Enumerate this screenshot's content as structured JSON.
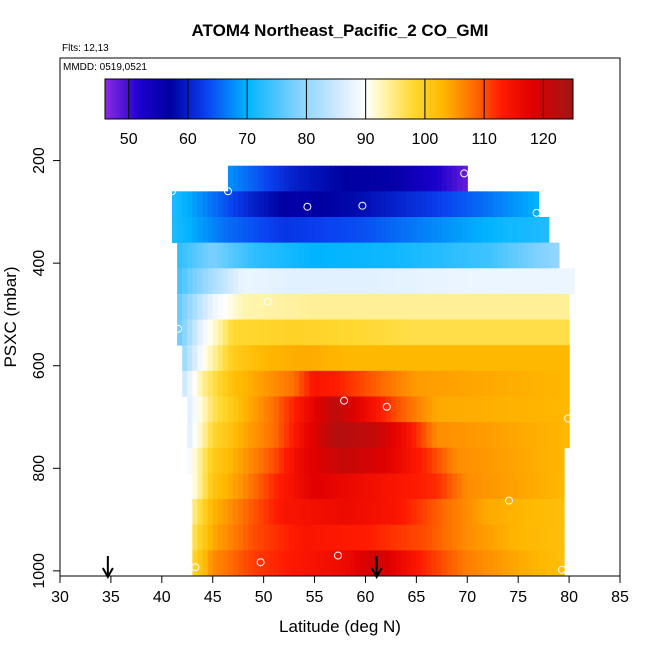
{
  "chart_data": {
    "type": "heatmap",
    "title": "ATOM4 Northeast_Pacific_2 CO_GMI",
    "annotations": [
      "Flts: 12,13",
      "MMDD: 0519,0521"
    ],
    "xlabel": "Latitude (deg N)",
    "ylabel": "PSXC (mbar)",
    "xlim": [
      30,
      85
    ],
    "ylim": [
      1000,
      0
    ],
    "x_ticks": [
      "30",
      "35",
      "40",
      "45",
      "50",
      "55",
      "60",
      "65",
      "70",
      "75",
      "80",
      "85"
    ],
    "y_ticks": [
      "200",
      "400",
      "600",
      "800",
      "1000"
    ],
    "colorbar": {
      "min": 46,
      "max": 125,
      "ticks": [
        "50",
        "60",
        "70",
        "80",
        "90",
        "100",
        "110",
        "120"
      ],
      "colors": [
        {
          "v": 46,
          "c": "#8a2be2"
        },
        {
          "v": 52,
          "c": "#1a00cc"
        },
        {
          "v": 57,
          "c": "#0000a0"
        },
        {
          "v": 63,
          "c": "#0a40f0"
        },
        {
          "v": 70,
          "c": "#00b4ff"
        },
        {
          "v": 78,
          "c": "#7cd0ff"
        },
        {
          "v": 86,
          "c": "#d8ecff"
        },
        {
          "v": 90,
          "c": "#ffffff"
        },
        {
          "v": 93,
          "c": "#fff5b0"
        },
        {
          "v": 98,
          "c": "#ffd830"
        },
        {
          "v": 103,
          "c": "#ffb800"
        },
        {
          "v": 108,
          "c": "#ff7000"
        },
        {
          "v": 113,
          "c": "#ff1a00"
        },
        {
          "v": 118,
          "c": "#e00000"
        },
        {
          "v": 125,
          "c": "#a01515"
        }
      ]
    },
    "rows": [
      {
        "p_top": 210,
        "p_bot": 260,
        "lat0": 46.5,
        "lat1": 70.0,
        "stops": [
          [
            46.5,
            68
          ],
          [
            53,
            60
          ],
          [
            58,
            57
          ],
          [
            63,
            56
          ],
          [
            67,
            52
          ],
          [
            70,
            48
          ]
        ]
      },
      {
        "p_top": 260,
        "p_bot": 310,
        "lat0": 41.0,
        "lat1": 77.0,
        "stops": [
          [
            41,
            72
          ],
          [
            45,
            66
          ],
          [
            49,
            60
          ],
          [
            53,
            56
          ],
          [
            59,
            58
          ],
          [
            66,
            62
          ],
          [
            72,
            66
          ],
          [
            77,
            70
          ]
        ]
      },
      {
        "p_top": 310,
        "p_bot": 360,
        "lat0": 41.0,
        "lat1": 78.0,
        "stops": [
          [
            41,
            72
          ],
          [
            46,
            66
          ],
          [
            52,
            62
          ],
          [
            60,
            64
          ],
          [
            68,
            68
          ],
          [
            74,
            71
          ],
          [
            78,
            72
          ]
        ]
      },
      {
        "p_top": 360,
        "p_bot": 410,
        "lat0": 41.5,
        "lat1": 79.0,
        "stops": [
          [
            41.5,
            73
          ],
          [
            45,
            78
          ],
          [
            49,
            73
          ],
          [
            55,
            70
          ],
          [
            63,
            71
          ],
          [
            72,
            74
          ],
          [
            79,
            80
          ]
        ]
      },
      {
        "p_top": 410,
        "p_bot": 460,
        "lat0": 41.5,
        "lat1": 80.5,
        "stops": [
          [
            41.5,
            74
          ],
          [
            45,
            82
          ],
          [
            48,
            88
          ],
          [
            53,
            87
          ],
          [
            60,
            87
          ],
          [
            70,
            88
          ],
          [
            80.5,
            88
          ]
        ]
      },
      {
        "p_top": 460,
        "p_bot": 510,
        "lat0": 41.5,
        "lat1": 80.0,
        "stops": [
          [
            41.5,
            76
          ],
          [
            45,
            88
          ],
          [
            48,
            93
          ],
          [
            55,
            94
          ],
          [
            65,
            94
          ],
          [
            80,
            94
          ]
        ]
      },
      {
        "p_top": 510,
        "p_bot": 560,
        "lat0": 41.5,
        "lat1": 80.0,
        "stops": [
          [
            41.5,
            76
          ],
          [
            44,
            88
          ],
          [
            47,
            98
          ],
          [
            53,
            99
          ],
          [
            65,
            97
          ],
          [
            80,
            97
          ]
        ]
      },
      {
        "p_top": 560,
        "p_bot": 610,
        "lat0": 42.0,
        "lat1": 80.0,
        "stops": [
          [
            42,
            80
          ],
          [
            44,
            90
          ],
          [
            47,
            100
          ],
          [
            50,
            103
          ],
          [
            54,
            104
          ],
          [
            58,
            103
          ],
          [
            65,
            103
          ],
          [
            80,
            103
          ]
        ]
      },
      {
        "p_top": 610,
        "p_bot": 660,
        "lat0": 42.0,
        "lat1": 80.0,
        "stops": [
          [
            42,
            84
          ],
          [
            44,
            94
          ],
          [
            47,
            102
          ],
          [
            50,
            105
          ],
          [
            53,
            108
          ],
          [
            55,
            114
          ],
          [
            57,
            113
          ],
          [
            60,
            110
          ],
          [
            65,
            105
          ],
          [
            80,
            103
          ]
        ]
      },
      {
        "p_top": 660,
        "p_bot": 710,
        "lat0": 42.5,
        "lat1": 80.0,
        "stops": [
          [
            42.5,
            86
          ],
          [
            45,
            96
          ],
          [
            48,
            103
          ],
          [
            51,
            108
          ],
          [
            54,
            115
          ],
          [
            57,
            122
          ],
          [
            60,
            116
          ],
          [
            63,
            110
          ],
          [
            67,
            104
          ],
          [
            80,
            103
          ]
        ]
      },
      {
        "p_top": 710,
        "p_bot": 760,
        "lat0": 42.5,
        "lat1": 80.0,
        "stops": [
          [
            42.5,
            86
          ],
          [
            45,
            98
          ],
          [
            48,
            104
          ],
          [
            51,
            108
          ],
          [
            54,
            116
          ],
          [
            57,
            123
          ],
          [
            61,
            121
          ],
          [
            64,
            115
          ],
          [
            67,
            106
          ],
          [
            80,
            103
          ]
        ]
      },
      {
        "p_top": 760,
        "p_bot": 810,
        "lat0": 42.5,
        "lat1": 79.5,
        "stops": [
          [
            42.5,
            88
          ],
          [
            45,
            100
          ],
          [
            48,
            105
          ],
          [
            51,
            110
          ],
          [
            54,
            117
          ],
          [
            58,
            121
          ],
          [
            62,
            118
          ],
          [
            66,
            112
          ],
          [
            69,
            106
          ],
          [
            79.5,
            103
          ]
        ]
      },
      {
        "p_top": 810,
        "p_bot": 860,
        "lat0": 43.0,
        "lat1": 79.5,
        "stops": [
          [
            43,
            90
          ],
          [
            45,
            101
          ],
          [
            48,
            106
          ],
          [
            51,
            112
          ],
          [
            55,
            118
          ],
          [
            59,
            116
          ],
          [
            63,
            114
          ],
          [
            67,
            112
          ],
          [
            70,
            106
          ],
          [
            79.5,
            103
          ]
        ]
      },
      {
        "p_top": 860,
        "p_bot": 910,
        "lat0": 43.0,
        "lat1": 79.5,
        "stops": [
          [
            43,
            94
          ],
          [
            45,
            103
          ],
          [
            48,
            108
          ],
          [
            52,
            114
          ],
          [
            58,
            116
          ],
          [
            63,
            114
          ],
          [
            68,
            108
          ],
          [
            72,
            104
          ],
          [
            79.5,
            102
          ]
        ]
      },
      {
        "p_top": 910,
        "p_bot": 960,
        "lat0": 43.0,
        "lat1": 79.5,
        "stops": [
          [
            43,
            96
          ],
          [
            45,
            104
          ],
          [
            49,
            110
          ],
          [
            54,
            114
          ],
          [
            60,
            113
          ],
          [
            66,
            110
          ],
          [
            70,
            106
          ],
          [
            75,
            103
          ],
          [
            79.5,
            102
          ]
        ]
      },
      {
        "p_top": 960,
        "p_bot": 1010,
        "lat0": 43.0,
        "lat1": 79.5,
        "stops": [
          [
            43,
            98
          ],
          [
            45,
            106
          ],
          [
            49,
            111
          ],
          [
            54,
            114
          ],
          [
            58,
            116
          ],
          [
            61,
            120
          ],
          [
            63,
            117
          ],
          [
            66,
            112
          ],
          [
            70,
            107
          ],
          [
            75,
            104
          ],
          [
            79.5,
            102
          ]
        ]
      }
    ],
    "points": [
      {
        "lat": 46.5,
        "p": 260
      },
      {
        "lat": 69.7,
        "p": 225
      },
      {
        "lat": 41.0,
        "p": 260
      },
      {
        "lat": 54.3,
        "p": 290
      },
      {
        "lat": 59.7,
        "p": 288
      },
      {
        "lat": 76.8,
        "p": 302
      },
      {
        "lat": 50.4,
        "p": 475
      },
      {
        "lat": 41.6,
        "p": 528
      },
      {
        "lat": 57.9,
        "p": 668
      },
      {
        "lat": 62.1,
        "p": 680
      },
      {
        "lat": 79.9,
        "p": 703
      },
      {
        "lat": 74.1,
        "p": 863
      },
      {
        "lat": 57.3,
        "p": 970
      },
      {
        "lat": 49.7,
        "p": 983
      },
      {
        "lat": 43.3,
        "p": 993
      },
      {
        "lat": 79.3,
        "p": 998
      }
    ],
    "arrows": [
      {
        "lat": 34.7
      },
      {
        "lat": 61.1
      }
    ]
  }
}
